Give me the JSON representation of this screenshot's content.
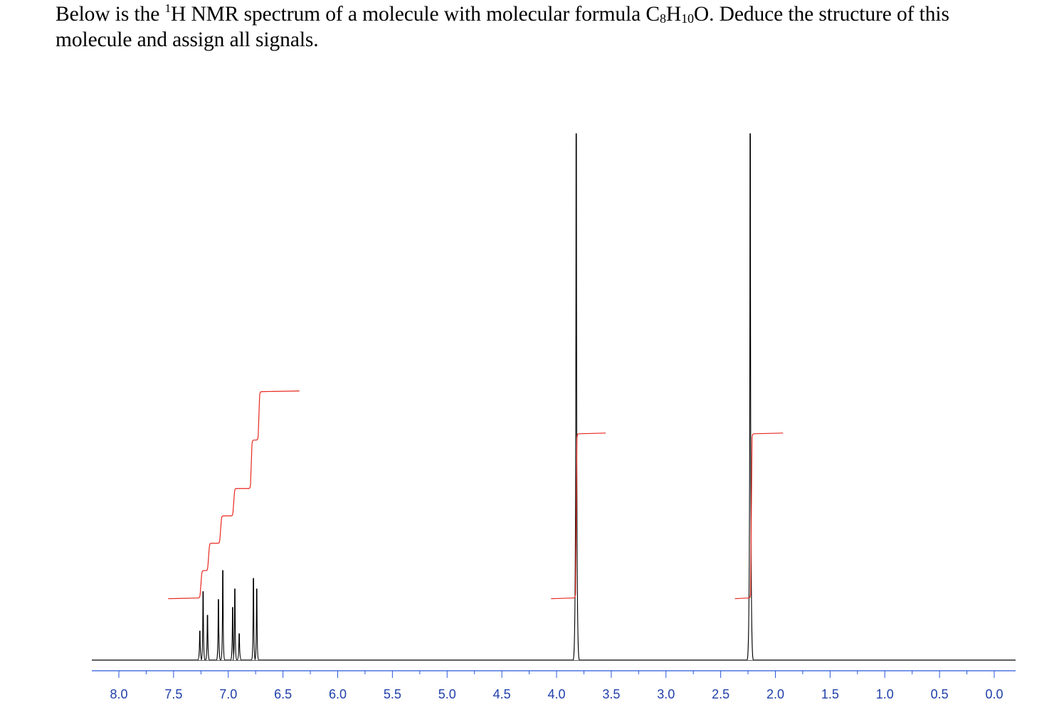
{
  "question": {
    "line1_pre": "Below is the ",
    "sup": "1",
    "line1_mid": "H NMR spectrum of a molecule with molecular formula C",
    "sub_c": "8",
    "h": "H",
    "sub_h": "10",
    "line1_post": "O.  Deduce the structure of this",
    "line2": "molecule and assign all signals."
  },
  "colors": {
    "spectrum": "#000000",
    "integral": "#e8281e",
    "axis": "#2a57e0",
    "axis_label": "#1f3fa8"
  },
  "chart_data": {
    "type": "line",
    "title": "",
    "xlabel": "",
    "ylabel": "",
    "x_axis": "chemical shift (ppm), reversed",
    "xlim": [
      8.0,
      0.0
    ],
    "x_ticks": [
      "8.0",
      "7.5",
      "7.0",
      "6.5",
      "6.0",
      "5.5",
      "5.0",
      "4.5",
      "4.0",
      "3.5",
      "3.0",
      "2.5",
      "2.0",
      "1.5",
      "1.0",
      "0.5",
      "0.0"
    ],
    "grid": false,
    "legend": "none",
    "peaks": [
      {
        "ppm": 7.26,
        "height": 0.055
      },
      {
        "ppm": 7.23,
        "height": 0.13
      },
      {
        "ppm": 7.19,
        "height": 0.085
      },
      {
        "ppm": 7.09,
        "height": 0.115
      },
      {
        "ppm": 7.05,
        "height": 0.17
      },
      {
        "ppm": 6.96,
        "height": 0.1
      },
      {
        "ppm": 6.94,
        "height": 0.135
      },
      {
        "ppm": 6.9,
        "height": 0.05
      },
      {
        "ppm": 6.77,
        "height": 0.155
      },
      {
        "ppm": 6.74,
        "height": 0.135
      },
      {
        "ppm": 3.82,
        "height": 1.0
      },
      {
        "ppm": 2.23,
        "height": 1.0
      }
    ],
    "integrals": [
      {
        "from": 7.55,
        "to": 6.35,
        "start": 0.118,
        "steps": [
          {
            "ppm": 7.25,
            "rise": 0.052
          },
          {
            "ppm": 7.18,
            "rise": 0.052
          },
          {
            "ppm": 7.07,
            "rise": 0.052
          },
          {
            "ppm": 6.95,
            "rise": 0.052
          },
          {
            "ppm": 6.79,
            "rise": 0.092
          },
          {
            "ppm": 6.72,
            "rise": 0.092
          }
        ]
      },
      {
        "from": 4.05,
        "to": 3.55,
        "start": 0.118,
        "steps": [
          {
            "ppm": 3.82,
            "rise": 0.312
          }
        ]
      },
      {
        "from": 2.37,
        "to": 1.93,
        "start": 0.118,
        "steps": [
          {
            "ppm": 2.22,
            "rise": 0.312
          }
        ]
      }
    ]
  }
}
